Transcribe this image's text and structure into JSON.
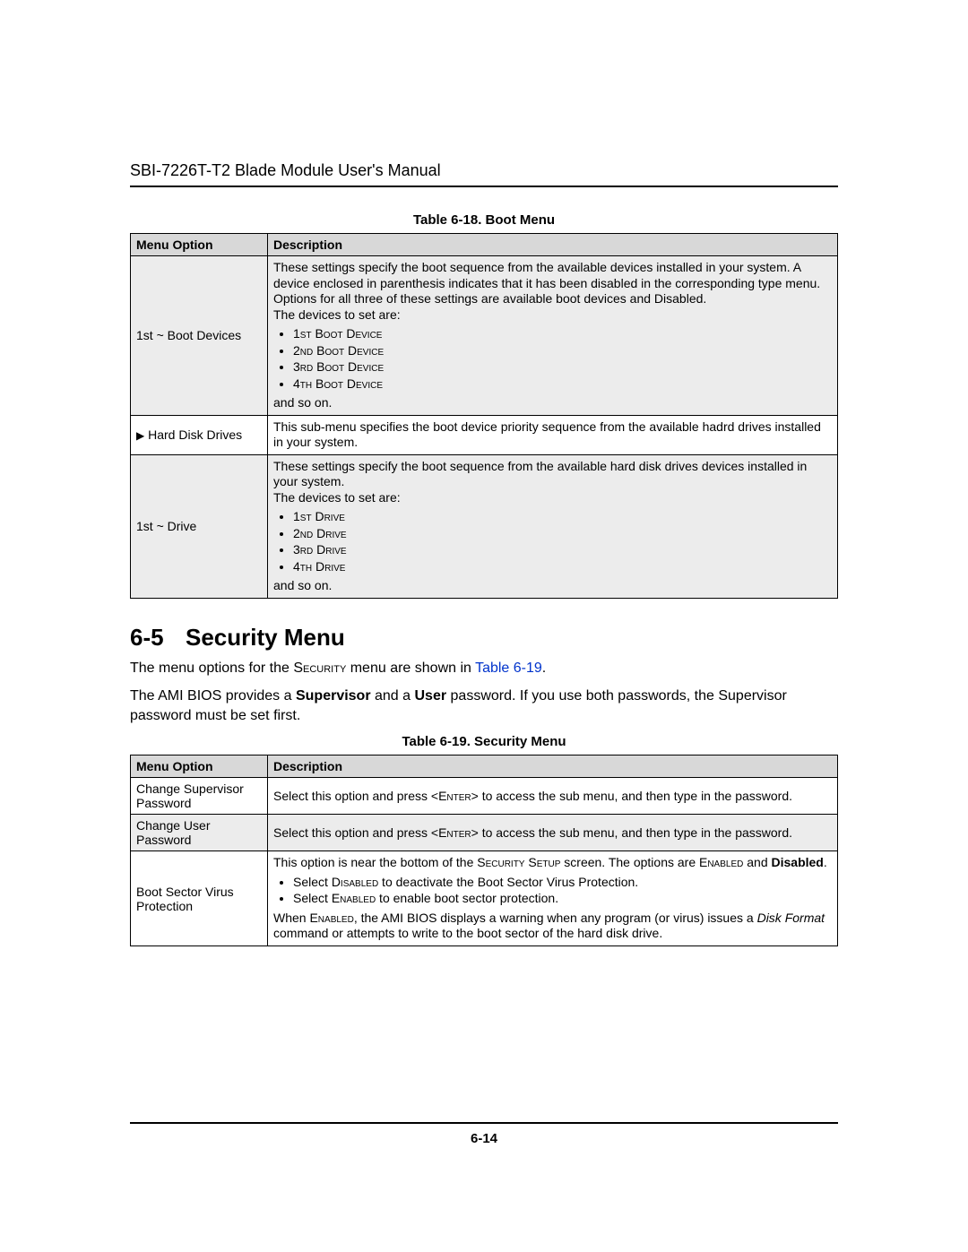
{
  "running_head": "SBI-7226T-T2 Blade Module User's Manual",
  "page_number": "6-14",
  "table_boot": {
    "caption": "Table 6-18. Boot Menu",
    "col1": "Menu Option",
    "col2": "Description",
    "rows": {
      "r1": {
        "option": "1st ~ Boot Devices",
        "intro": "These settings specify the boot sequence from the available devices installed in your system. A device enclosed in parenthesis indicates that it has been disabled in the corresponding type menu. Options for all three of these settings are available boot devices and Disabled.",
        "devset": "The devices to set are:",
        "items": [
          "1st Boot Device",
          "2nd Boot Device",
          "3rd Boot Device",
          "4th Boot Device"
        ],
        "outro": "and so on."
      },
      "r2": {
        "option_prefix": "▶",
        "option": "Hard Disk Drives",
        "desc": "This sub-menu specifies the boot device priority sequence from the available hadrd drives installed in your system."
      },
      "r3": {
        "option": "1st ~ Drive",
        "intro": "These settings specify the boot sequence from the available hard disk drives devices installed in your system.",
        "devset": "The devices to set are:",
        "items": [
          "1st Drive",
          "2nd Drive",
          "3rd Drive",
          "4th Drive"
        ],
        "outro": "and so on."
      }
    }
  },
  "section": {
    "number": "6-5",
    "title": "Security Menu",
    "para1_pre": "The menu options for the ",
    "para1_sc": "Security",
    "para1_mid": " menu are shown in ",
    "para1_link": "Table 6-19",
    "para1_post": ".",
    "para2": "The AMI BIOS provides a Supervisor and a User password. If you use both passwords, the Supervisor password must be set first."
  },
  "table_sec": {
    "caption": "Table 6-19. Security Menu",
    "col1": "Menu Option",
    "col2": "Description",
    "rows": {
      "r1": {
        "option": "Change Supervisor Password",
        "desc_pre": "Select this option and press <",
        "desc_sc": "Enter",
        "desc_post": "> to access the sub menu, and then type in the password."
      },
      "r2": {
        "option": "Change User Password",
        "desc_pre": "Select this option and press <",
        "desc_sc": "Enter",
        "desc_post": "> to access the sub menu, and then type in the password."
      },
      "r3": {
        "option": "Boot Sector Virus Protection",
        "line1_pre": "This option is near the bottom of the ",
        "line1_sc": "Security Setup",
        "line1_mid": " screen. The options are ",
        "line1_sc2": "Enabled",
        "line1_and": " and ",
        "line1_bold": "Disabled",
        "line1_post": ".",
        "b1_pre": "Select ",
        "b1_sc": "Disabled",
        "b1_post": " to deactivate the Boot Sector Virus Protection.",
        "b2_pre": "Select ",
        "b2_sc": "Enabled",
        "b2_post": " to enable boot sector protection.",
        "tail_pre": "When ",
        "tail_sc": "Enabled",
        "tail_mid": ", the AMI BIOS displays a warning when any program (or virus) issues a ",
        "tail_it": "Disk Format",
        "tail_post": " command or attempts to write to the boot sector of the hard disk drive."
      }
    }
  }
}
